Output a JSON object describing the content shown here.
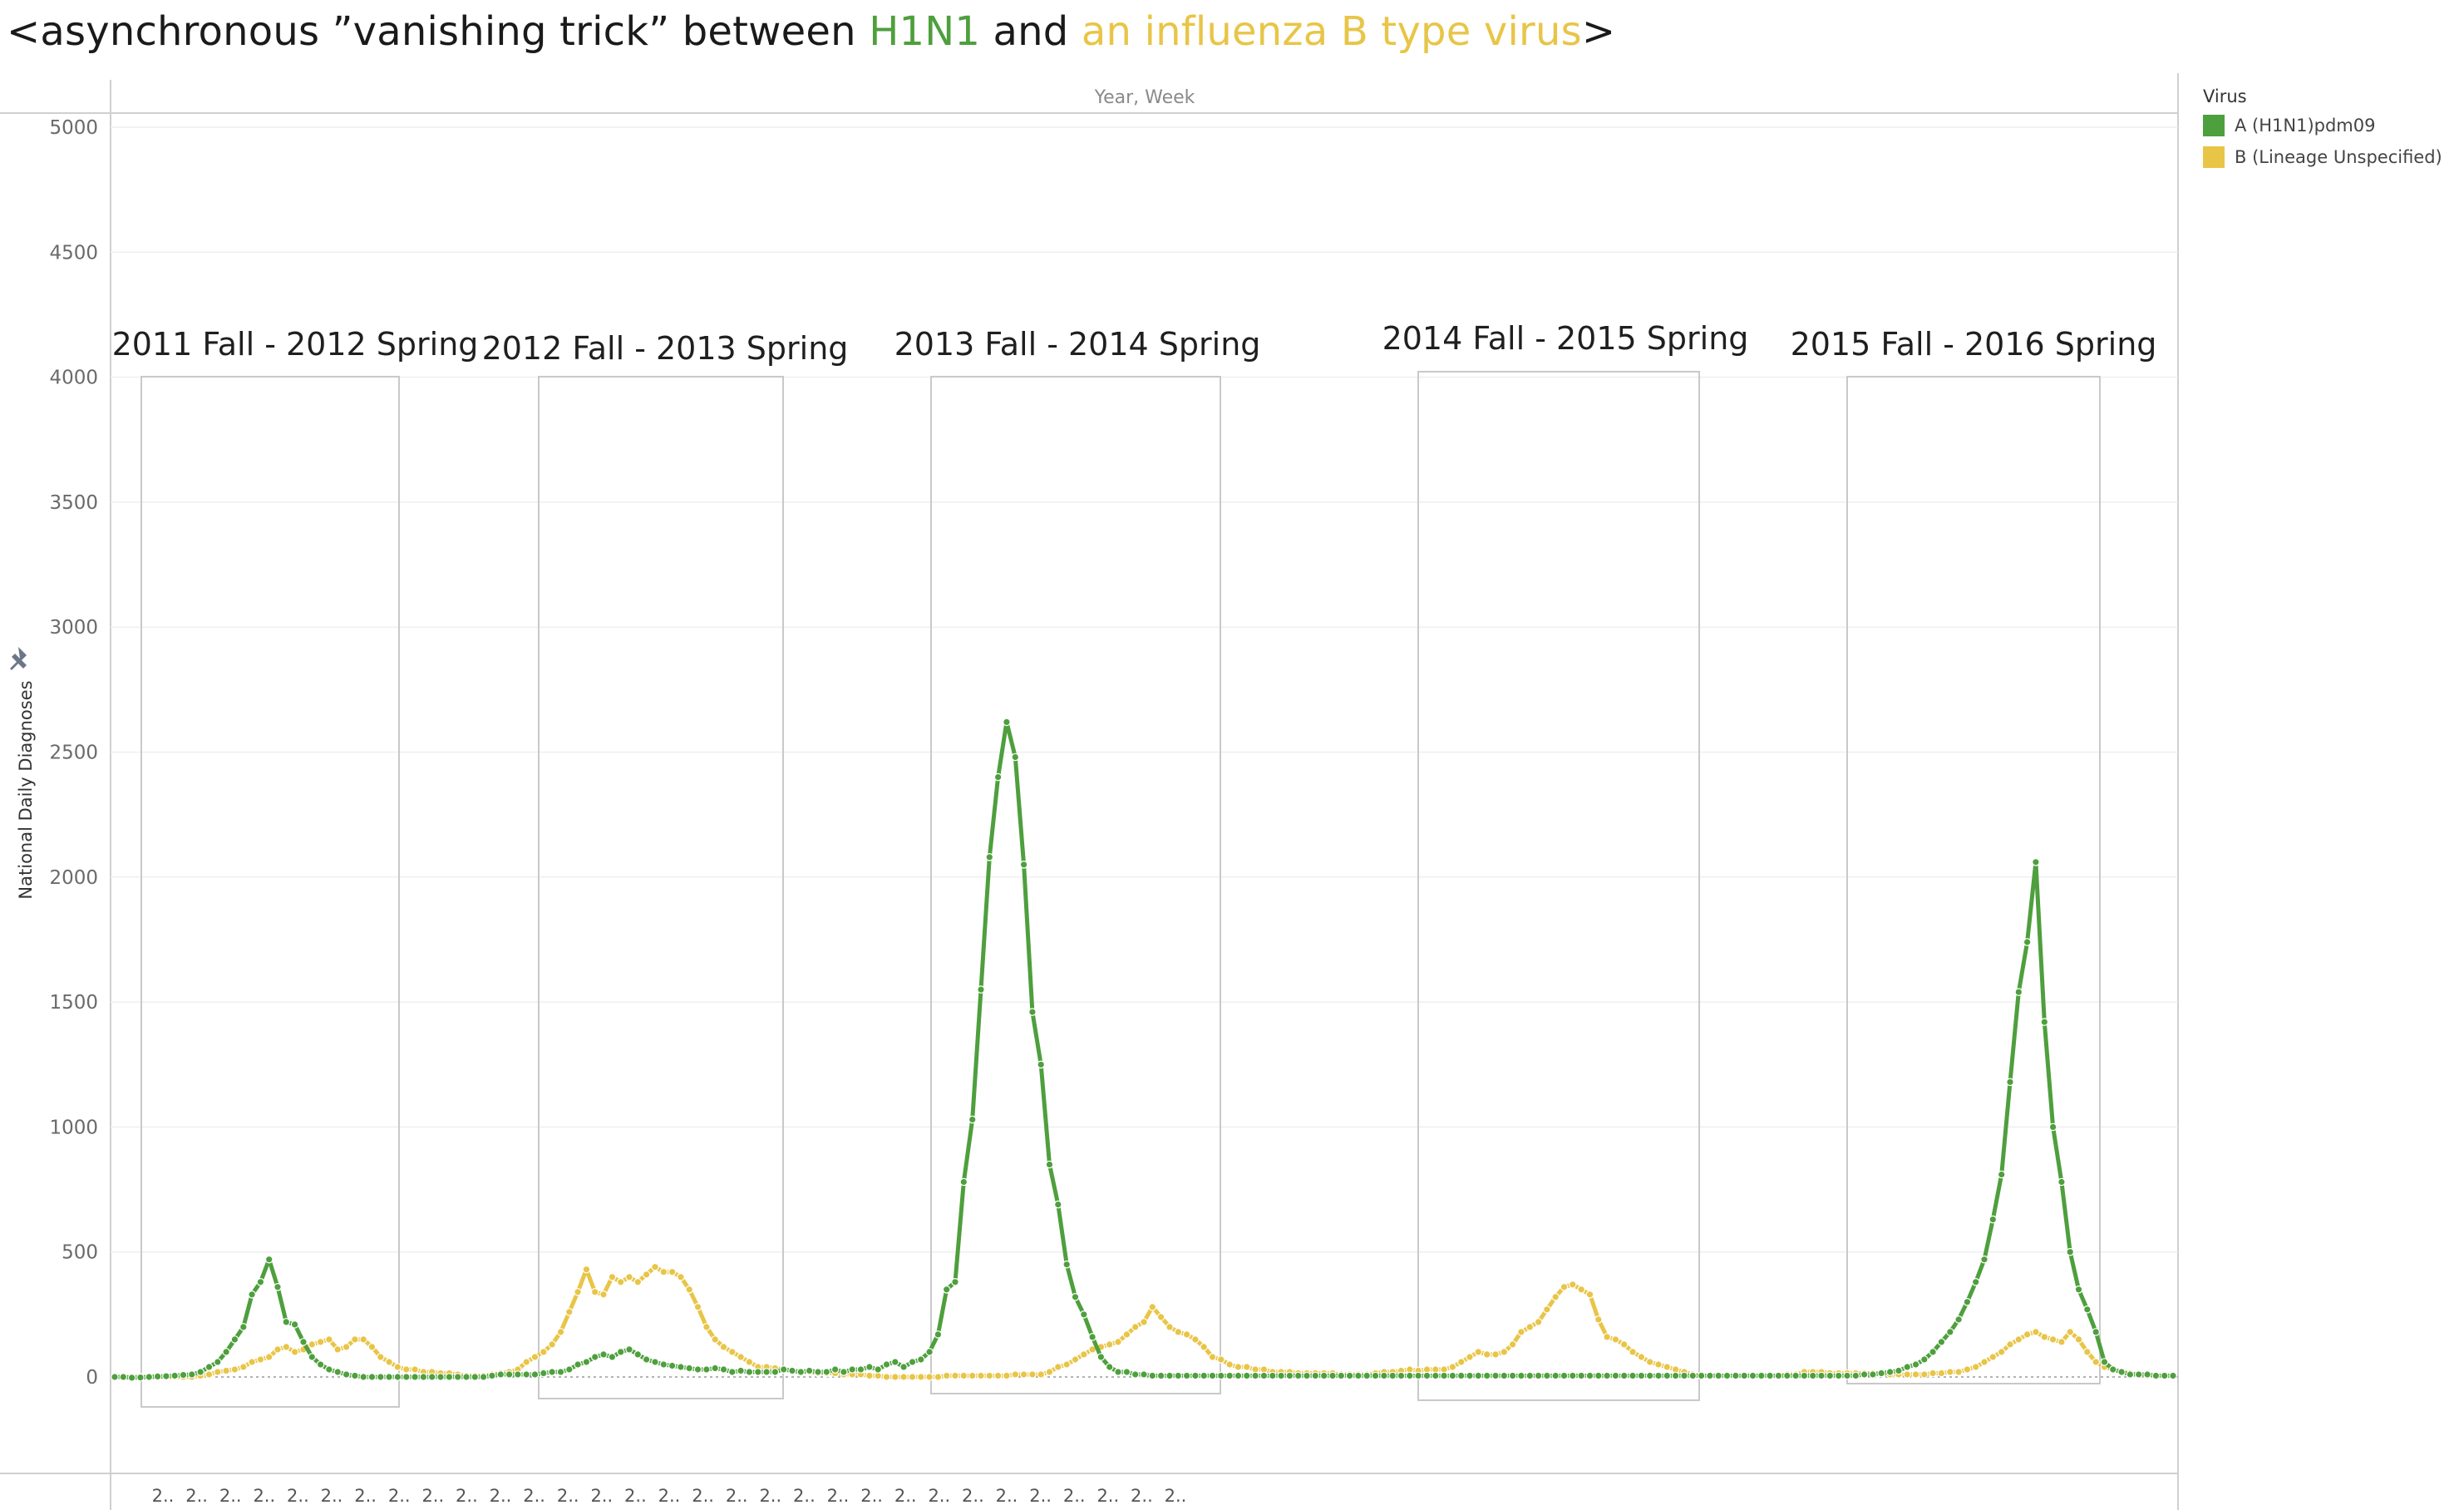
{
  "title": {
    "prefix": "<asynchronous ”vanishing trick” between ",
    "h1n1": "H1N1",
    "middle": " and ",
    "fluB": "an influenza B type virus",
    "suffix": ">"
  },
  "colors": {
    "h1n1": "#4e9f3d",
    "fluB": "#e8c547"
  },
  "legend": {
    "title": "Virus",
    "items": [
      "A (H1N1)pdm09",
      "B (Lineage Unspecified)"
    ]
  },
  "chart_data": {
    "type": "line",
    "xlabel": "Year, Week",
    "ylabel": "National Daily Diagnoses",
    "ylim": [
      -100,
      5000
    ],
    "yticks": [
      0,
      500,
      1000,
      1500,
      2000,
      2500,
      3000,
      3500,
      4000,
      4500,
      5000
    ],
    "xtick_label": "2..",
    "xtick_count": 31,
    "grid": true,
    "legend_position": "right",
    "season_labels": [
      "2011 Fall - 2012 Spring",
      "2012 Fall - 2013 Spring",
      "2013 Fall - 2014 Spring",
      "2014 Fall - 2015 Spring",
      "2015 Fall - 2016 Spring"
    ],
    "series": [
      {
        "name": "A (H1N1)pdm09",
        "values": [
          0,
          0,
          -3,
          -2,
          0,
          2,
          3,
          5,
          8,
          10,
          20,
          40,
          60,
          100,
          150,
          200,
          330,
          380,
          470,
          360,
          220,
          210,
          140,
          80,
          50,
          30,
          20,
          10,
          5,
          0,
          0,
          0,
          0,
          0,
          0,
          0,
          0,
          0,
          0,
          0,
          0,
          0,
          0,
          0,
          5,
          10,
          10,
          10,
          10,
          10,
          15,
          20,
          20,
          30,
          50,
          60,
          80,
          90,
          80,
          100,
          110,
          90,
          70,
          60,
          50,
          45,
          40,
          35,
          30,
          30,
          35,
          30,
          20,
          25,
          20,
          20,
          20,
          20,
          30,
          25,
          20,
          25,
          20,
          20,
          30,
          20,
          30,
          30,
          40,
          30,
          50,
          60,
          40,
          60,
          70,
          100,
          170,
          350,
          380,
          780,
          1030,
          1550,
          2080,
          2400,
          2620,
          2480,
          2050,
          1460,
          1250,
          850,
          690,
          450,
          320,
          250,
          160,
          80,
          40,
          20,
          20,
          10,
          10,
          5,
          5,
          5,
          5,
          5,
          5,
          5,
          5,
          5,
          5,
          5,
          5,
          5,
          5,
          5,
          5,
          5,
          5,
          5,
          5,
          5,
          5,
          5,
          5,
          5,
          5,
          5,
          5,
          5,
          5,
          5,
          5,
          5,
          5,
          5,
          5,
          5,
          5,
          5,
          5,
          5,
          5,
          5,
          5,
          5,
          5,
          5,
          5,
          5,
          5,
          5,
          5,
          5,
          5,
          5,
          5,
          5,
          5,
          5,
          5,
          5,
          5,
          5,
          5,
          5,
          5,
          5,
          5,
          5,
          5,
          5,
          5,
          5,
          5,
          5,
          5,
          5,
          5,
          5,
          5,
          5,
          5,
          5,
          10,
          10,
          15,
          20,
          25,
          40,
          50,
          70,
          100,
          140,
          180,
          230,
          300,
          380,
          470,
          630,
          810,
          1180,
          1540,
          1740,
          2060,
          1420,
          1000,
          780,
          500,
          350,
          270,
          180,
          60,
          30,
          20,
          10,
          10,
          10,
          5,
          5,
          5
        ]
      },
      {
        "name": "B (Lineage Unspecified)",
        "values": [
          0,
          0,
          0,
          0,
          0,
          0,
          0,
          0,
          0,
          0,
          5,
          10,
          20,
          25,
          30,
          40,
          60,
          70,
          80,
          110,
          120,
          100,
          110,
          130,
          140,
          150,
          110,
          120,
          150,
          150,
          120,
          80,
          60,
          40,
          30,
          30,
          20,
          20,
          15,
          15,
          10,
          5,
          5,
          5,
          10,
          15,
          20,
          30,
          60,
          80,
          100,
          130,
          180,
          260,
          340,
          430,
          340,
          330,
          400,
          380,
          400,
          380,
          410,
          440,
          420,
          420,
          400,
          350,
          280,
          200,
          150,
          120,
          100,
          80,
          60,
          40,
          40,
          35,
          30,
          25,
          20,
          20,
          15,
          15,
          15,
          10,
          10,
          10,
          5,
          5,
          0,
          0,
          0,
          0,
          0,
          0,
          0,
          5,
          5,
          5,
          5,
          5,
          5,
          5,
          5,
          10,
          10,
          10,
          10,
          20,
          40,
          50,
          70,
          90,
          110,
          120,
          130,
          140,
          170,
          200,
          220,
          280,
          240,
          200,
          180,
          170,
          150,
          120,
          80,
          70,
          50,
          40,
          40,
          30,
          30,
          20,
          20,
          20,
          15,
          15,
          15,
          15,
          15,
          10,
          10,
          10,
          10,
          15,
          20,
          20,
          25,
          30,
          25,
          30,
          30,
          30,
          40,
          60,
          80,
          100,
          90,
          90,
          100,
          130,
          180,
          200,
          220,
          270,
          320,
          360,
          370,
          350,
          330,
          230,
          160,
          150,
          130,
          100,
          80,
          60,
          50,
          40,
          30,
          20,
          10,
          5,
          5,
          5,
          5,
          5,
          5,
          5,
          5,
          5,
          5,
          10,
          10,
          20,
          20,
          20,
          15,
          15,
          15,
          15,
          15,
          15,
          15,
          10,
          10,
          10,
          10,
          10,
          15,
          15,
          20,
          20,
          30,
          40,
          60,
          80,
          100,
          130,
          150,
          170,
          180,
          160,
          150,
          140,
          180,
          150,
          100,
          60,
          40,
          30,
          20,
          15,
          10,
          5,
          5
        ]
      }
    ]
  }
}
